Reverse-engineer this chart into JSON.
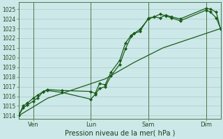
{
  "bg_color": "#cce8e8",
  "grid_color": "#aacccc",
  "line_color": "#1a5c1a",
  "marker_color": "#1a5c1a",
  "ylabel_ticks": [
    1014,
    1015,
    1016,
    1017,
    1018,
    1019,
    1020,
    1021,
    1022,
    1023,
    1024,
    1025
  ],
  "ylim": [
    1013.7,
    1025.7
  ],
  "xlim": [
    0,
    7
  ],
  "xlabel": "Pression niveau de la mer( hPa )",
  "day_labels": [
    "Ven",
    "Lun",
    "Sam",
    "Dim"
  ],
  "day_positions": [
    0.5,
    2.5,
    4.5,
    6.5
  ],
  "day_vlines": [
    0.5,
    2.5,
    4.5,
    6.5
  ],
  "series1_x": [
    0.0,
    0.15,
    0.3,
    0.5,
    0.65,
    0.85,
    1.0,
    1.5,
    2.5,
    2.65,
    2.8,
    3.0,
    3.2,
    3.5,
    3.7,
    3.9,
    4.0,
    4.2,
    4.5,
    4.7,
    4.9,
    5.1,
    5.3,
    5.6,
    6.5,
    6.65,
    6.85,
    7.0
  ],
  "series1": [
    1014.0,
    1014.8,
    1015.1,
    1015.5,
    1015.8,
    1016.5,
    1016.7,
    1016.6,
    1016.5,
    1016.3,
    1017.3,
    1017.2,
    1018.5,
    1019.7,
    1021.5,
    1022.3,
    1022.5,
    1022.7,
    1024.1,
    1024.2,
    1024.1,
    1024.4,
    1024.2,
    1024.0,
    1025.1,
    1025.0,
    1024.7,
    1022.9
  ],
  "series2_x": [
    0.0,
    0.15,
    0.3,
    0.5,
    0.65,
    0.85,
    1.0,
    1.5,
    2.5,
    2.65,
    2.8,
    3.0,
    3.2,
    3.5,
    3.7,
    3.9,
    4.0,
    4.2,
    4.5,
    4.7,
    4.9,
    5.1,
    5.3,
    5.6,
    6.5,
    6.65,
    6.85,
    7.0
  ],
  "series2": [
    1014.0,
    1015.0,
    1015.3,
    1015.8,
    1016.1,
    1016.5,
    1016.6,
    1016.4,
    1015.7,
    1016.2,
    1016.8,
    1017.0,
    1018.1,
    1019.3,
    1020.9,
    1022.2,
    1022.5,
    1022.9,
    1024.0,
    1024.2,
    1024.5,
    1024.3,
    1024.1,
    1023.8,
    1024.9,
    1024.7,
    1024.1,
    1023.0
  ],
  "series3_x": [
    0.0,
    1.0,
    2.0,
    3.0,
    4.0,
    5.0,
    6.0,
    7.0
  ],
  "series3": [
    1014.0,
    1015.8,
    1016.8,
    1017.8,
    1019.5,
    1021.0,
    1022.0,
    1023.0
  ],
  "xlabel_fontsize": 7,
  "ytick_fontsize": 5.5,
  "xtick_fontsize": 6
}
